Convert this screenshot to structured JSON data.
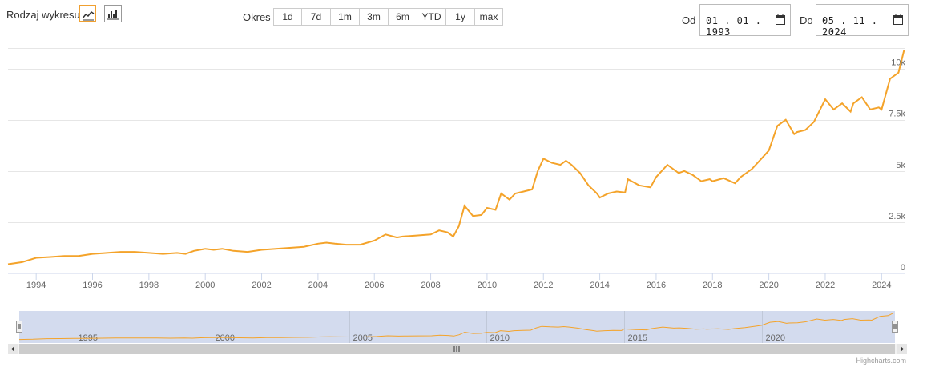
{
  "controls": {
    "chart_type_label": "Rodzaj wykresu",
    "chart_types": [
      "line-chart-icon",
      "bar-chart-icon"
    ],
    "period_label": "Okres",
    "periods": [
      "1d",
      "7d",
      "1m",
      "3m",
      "6m",
      "YTD",
      "1y",
      "max"
    ],
    "from_label": "Od",
    "from_value": "01 . 01 . 1993",
    "to_label": "Do",
    "to_value": "05 . 11 . 2024"
  },
  "credits": "Highcharts.com",
  "colors": {
    "line": "#f4a32a",
    "navigator_fill": "#d3dbee",
    "grid": "#e6e6e6"
  },
  "chart_data": {
    "type": "line",
    "x_label": "",
    "y_label": "",
    "ylim": [
      0,
      11000
    ],
    "xlim": [
      "1993-01-01",
      "2024-11-05"
    ],
    "y_ticks": [
      0,
      2500,
      5000,
      7500,
      10000
    ],
    "y_tick_labels": [
      "0",
      "2.5k",
      "5k",
      "7.5k",
      "10k"
    ],
    "x_tick_labels": [
      "1994",
      "1996",
      "1998",
      "2000",
      "2002",
      "2004",
      "2006",
      "2008",
      "2010",
      "2012",
      "2014",
      "2016",
      "2018",
      "2020",
      "2022",
      "2024"
    ],
    "navigator_labels": [
      "1995",
      "2000",
      "2005",
      "2010",
      "2015",
      "2020"
    ],
    "grid": true,
    "legend": "none",
    "series": [
      {
        "x": [
          1993.0,
          1993.5,
          1994.0,
          1994.5,
          1995.0,
          1995.5,
          1996.0,
          1996.5,
          1997.0,
          1997.5,
          1998.0,
          1998.5,
          1999.0,
          1999.3,
          1999.6,
          2000.0,
          2000.3,
          2000.6,
          2001.0,
          2001.5,
          2002.0,
          2002.5,
          2003.0,
          2003.5,
          2004.0,
          2004.3,
          2004.6,
          2005.0,
          2005.5,
          2006.0,
          2006.4,
          2006.8,
          2007.0,
          2007.5,
          2008.0,
          2008.3,
          2008.6,
          2008.8,
          2009.0,
          2009.2,
          2009.5,
          2009.8,
          2010.0,
          2010.3,
          2010.5,
          2010.8,
          2011.0,
          2011.3,
          2011.6,
          2011.8,
          2012.0,
          2012.3,
          2012.6,
          2012.8,
          2013.0,
          2013.3,
          2013.6,
          2013.9,
          2014.0,
          2014.3,
          2014.6,
          2014.9,
          2015.0,
          2015.4,
          2015.8,
          2016.0,
          2016.4,
          2016.8,
          2017.0,
          2017.3,
          2017.6,
          2017.9,
          2018.0,
          2018.4,
          2018.8,
          2019.0,
          2019.4,
          2019.8,
          2020.0,
          2020.3,
          2020.6,
          2020.9,
          2021.0,
          2021.3,
          2021.6,
          2022.0,
          2022.3,
          2022.6,
          2022.9,
          2023.0,
          2023.3,
          2023.6,
          2023.9,
          2024.0,
          2024.3,
          2024.6,
          2024.8
        ],
        "y": [
          450,
          550,
          760,
          800,
          850,
          850,
          950,
          1000,
          1050,
          1050,
          1000,
          950,
          1000,
          950,
          1100,
          1200,
          1150,
          1200,
          1100,
          1050,
          1150,
          1200,
          1250,
          1300,
          1450,
          1500,
          1450,
          1400,
          1400,
          1600,
          1900,
          1750,
          1800,
          1850,
          1900,
          2100,
          2000,
          1800,
          2300,
          3300,
          2800,
          2850,
          3200,
          3100,
          3900,
          3600,
          3900,
          4000,
          4100,
          5000,
          5600,
          5400,
          5300,
          5500,
          5300,
          4900,
          4300,
          3900,
          3700,
          3900,
          4000,
          3950,
          4600,
          4300,
          4200,
          4700,
          5300,
          4900,
          5000,
          4800,
          4500,
          4600,
          4500,
          4650,
          4400,
          4700,
          5100,
          5700,
          6000,
          7200,
          7500,
          6800,
          6900,
          7000,
          7400,
          8500,
          8000,
          8300,
          7900,
          8300,
          8600,
          8000,
          8100,
          8000,
          9500,
          9800,
          10900
        ]
      }
    ]
  }
}
